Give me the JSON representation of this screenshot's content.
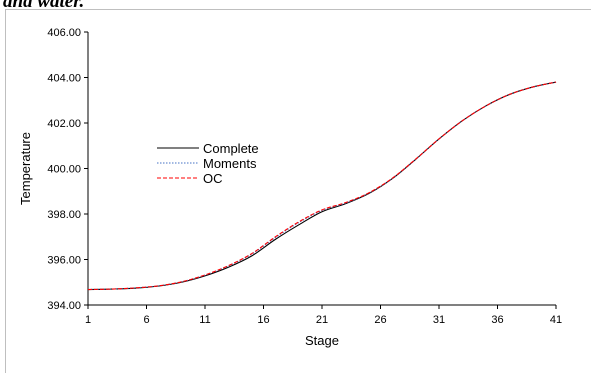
{
  "page": {
    "caption": "and water."
  },
  "chart_data": {
    "type": "line",
    "title": "",
    "xlabel": "Stage",
    "ylabel": "Temperature",
    "xlim": [
      1,
      41
    ],
    "ylim": [
      394.0,
      406.0
    ],
    "x_ticks": [
      "1",
      "6",
      "11",
      "16",
      "21",
      "26",
      "31",
      "36",
      "41"
    ],
    "y_ticks": [
      "394.00",
      "396.00",
      "398.00",
      "400.00",
      "402.00",
      "404.00",
      "406.00"
    ],
    "legend_position": "left-middle",
    "grid": false,
    "x": [
      1,
      3,
      5,
      7,
      9,
      11,
      13,
      15,
      17,
      19,
      21,
      23,
      25,
      27,
      29,
      31,
      33,
      35,
      37,
      39,
      41
    ],
    "series": [
      {
        "name": "Complete",
        "color": "#000000",
        "style": "solid",
        "values": [
          394.68,
          394.7,
          394.74,
          394.83,
          395.0,
          395.28,
          395.66,
          396.16,
          396.88,
          397.52,
          398.1,
          398.45,
          398.9,
          399.55,
          400.4,
          401.3,
          402.1,
          402.75,
          403.25,
          403.58,
          403.8
        ]
      },
      {
        "name": "Moments",
        "color": "#4472c4",
        "style": "dotted",
        "values": [
          394.68,
          394.7,
          394.75,
          394.84,
          395.02,
          395.31,
          395.72,
          396.24,
          396.96,
          397.62,
          398.16,
          398.48,
          398.92,
          399.56,
          400.4,
          401.3,
          402.1,
          402.75,
          403.25,
          403.58,
          403.8
        ]
      },
      {
        "name": "OC",
        "color": "#ff0000",
        "style": "dashed",
        "values": [
          394.68,
          394.7,
          394.75,
          394.84,
          395.02,
          395.32,
          395.73,
          396.26,
          396.99,
          397.65,
          398.18,
          398.5,
          398.93,
          399.57,
          400.41,
          401.3,
          402.1,
          402.75,
          403.25,
          403.58,
          403.8
        ]
      }
    ]
  }
}
